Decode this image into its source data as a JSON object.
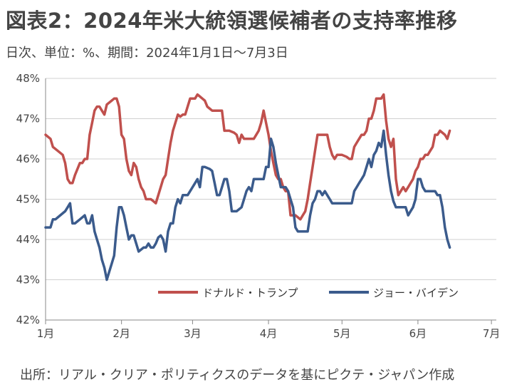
{
  "title": "図表2：2024年米大統領選候補者の支持率推移",
  "subtitle": "日次、単位：%、期間：2024年1月1日～7月3日",
  "source": "出所：リアル・クリア・ポリティクスのデータを基にピクテ・ジャパン作成",
  "chart_data": {
    "type": "line",
    "x_unit": "day of 2024",
    "y_unit": "%",
    "ylim": [
      42,
      48
    ],
    "xlim": [
      1,
      185
    ],
    "yticks": [
      42,
      43,
      44,
      45,
      46,
      47,
      48
    ],
    "ytick_labels": [
      "42%",
      "43%",
      "44%",
      "45%",
      "46%",
      "47%",
      "48%"
    ],
    "xticks": [
      {
        "label": "1月",
        "day": 1
      },
      {
        "label": "2月",
        "day": 32
      },
      {
        "label": "3月",
        "day": 61
      },
      {
        "label": "4月",
        "day": 92
      },
      {
        "label": "5月",
        "day": 122
      },
      {
        "label": "6月",
        "day": 153
      },
      {
        "label": "7月",
        "day": 183
      }
    ],
    "grid": "horizontal",
    "legend": "bottom-right",
    "series": [
      {
        "name": "ドナルド・トランプ",
        "color": "#c0504d",
        "points": [
          [
            1,
            46.6
          ],
          [
            3,
            46.5
          ],
          [
            4,
            46.3
          ],
          [
            6,
            46.2
          ],
          [
            8,
            46.1
          ],
          [
            9,
            45.9
          ],
          [
            10,
            45.5
          ],
          [
            11,
            45.4
          ],
          [
            12,
            45.4
          ],
          [
            13,
            45.6
          ],
          [
            15,
            45.9
          ],
          [
            16,
            45.9
          ],
          [
            17,
            46.0
          ],
          [
            18,
            46.0
          ],
          [
            19,
            46.6
          ],
          [
            20,
            46.9
          ],
          [
            21,
            47.2
          ],
          [
            22,
            47.3
          ],
          [
            23,
            47.3
          ],
          [
            24,
            47.2
          ],
          [
            25,
            47.1
          ],
          [
            26,
            47.35
          ],
          [
            28,
            47.45
          ],
          [
            29,
            47.5
          ],
          [
            30,
            47.5
          ],
          [
            31,
            47.3
          ],
          [
            32,
            46.6
          ],
          [
            33,
            46.5
          ],
          [
            34,
            46.0
          ],
          [
            35,
            45.7
          ],
          [
            36,
            45.6
          ],
          [
            37,
            45.9
          ],
          [
            38,
            45.8
          ],
          [
            39,
            45.5
          ],
          [
            40,
            45.3
          ],
          [
            41,
            45.2
          ],
          [
            42,
            45.0
          ],
          [
            44,
            45.0
          ],
          [
            45,
            44.95
          ],
          [
            46,
            44.9
          ],
          [
            47,
            45.1
          ],
          [
            48,
            45.3
          ],
          [
            49,
            45.5
          ],
          [
            50,
            45.6
          ],
          [
            51,
            46.0
          ],
          [
            52,
            46.4
          ],
          [
            53,
            46.7
          ],
          [
            54,
            46.9
          ],
          [
            55,
            47.1
          ],
          [
            56,
            47.05
          ],
          [
            57,
            47.1
          ],
          [
            58,
            47.1
          ],
          [
            59,
            47.3
          ],
          [
            60,
            47.5
          ],
          [
            62,
            47.5
          ],
          [
            63,
            47.6
          ],
          [
            64,
            47.55
          ],
          [
            65,
            47.5
          ],
          [
            66,
            47.45
          ],
          [
            67,
            47.3
          ],
          [
            68,
            47.25
          ],
          [
            69,
            47.2
          ],
          [
            71,
            47.2
          ],
          [
            73,
            47.2
          ],
          [
            74,
            46.7
          ],
          [
            76,
            46.7
          ],
          [
            78,
            46.65
          ],
          [
            79,
            46.6
          ],
          [
            80,
            46.4
          ],
          [
            81,
            46.6
          ],
          [
            82,
            46.5
          ],
          [
            84,
            46.5
          ],
          [
            86,
            46.5
          ],
          [
            87,
            46.6
          ],
          [
            88,
            46.7
          ],
          [
            89,
            46.9
          ],
          [
            90,
            47.2
          ],
          [
            91,
            46.9
          ],
          [
            92,
            46.6
          ],
          [
            93,
            46.2
          ],
          [
            94,
            45.9
          ],
          [
            95,
            45.6
          ],
          [
            96,
            45.5
          ],
          [
            97,
            45.5
          ],
          [
            98,
            45.3
          ],
          [
            99,
            45.2
          ],
          [
            100,
            45.2
          ],
          [
            101,
            44.6
          ],
          [
            103,
            44.6
          ],
          [
            104,
            44.55
          ],
          [
            105,
            44.5
          ],
          [
            106,
            44.6
          ],
          [
            107,
            44.7
          ],
          [
            108,
            45.0
          ],
          [
            109,
            45.4
          ],
          [
            110,
            45.8
          ],
          [
            111,
            46.2
          ],
          [
            112,
            46.6
          ],
          [
            114,
            46.6
          ],
          [
            116,
            46.6
          ],
          [
            117,
            46.3
          ],
          [
            118,
            46.1
          ],
          [
            119,
            46.0
          ],
          [
            120,
            46.1
          ],
          [
            122,
            46.1
          ],
          [
            124,
            46.05
          ],
          [
            125,
            46.0
          ],
          [
            126,
            46.0
          ],
          [
            127,
            46.3
          ],
          [
            128,
            46.4
          ],
          [
            129,
            46.5
          ],
          [
            130,
            46.6
          ],
          [
            131,
            46.6
          ],
          [
            132,
            46.7
          ],
          [
            133,
            47.0
          ],
          [
            134,
            47.0
          ],
          [
            135,
            47.2
          ],
          [
            136,
            47.5
          ],
          [
            137,
            47.5
          ],
          [
            138,
            47.5
          ],
          [
            139,
            47.6
          ],
          [
            140,
            46.95
          ],
          [
            141,
            46.5
          ],
          [
            142,
            46.3
          ],
          [
            143,
            46.5
          ],
          [
            144,
            45.5
          ],
          [
            145,
            45.1
          ],
          [
            146,
            45.2
          ],
          [
            147,
            45.3
          ],
          [
            148,
            45.2
          ],
          [
            149,
            45.3
          ],
          [
            150,
            45.4
          ],
          [
            151,
            45.5
          ],
          [
            152,
            45.7
          ],
          [
            153,
            45.8
          ],
          [
            154,
            46.0
          ],
          [
            155,
            46.0
          ],
          [
            156,
            46.1
          ],
          [
            157,
            46.1
          ],
          [
            158,
            46.2
          ],
          [
            159,
            46.3
          ],
          [
            160,
            46.6
          ],
          [
            161,
            46.6
          ],
          [
            162,
            46.7
          ],
          [
            164,
            46.6
          ],
          [
            165,
            46.5
          ],
          [
            166,
            46.7
          ]
        ]
      },
      {
        "name": "ジョー・バイデン",
        "color": "#3b5b8c",
        "points": [
          [
            1,
            44.3
          ],
          [
            3,
            44.3
          ],
          [
            4,
            44.5
          ],
          [
            5,
            44.5
          ],
          [
            7,
            44.6
          ],
          [
            9,
            44.7
          ],
          [
            10,
            44.8
          ],
          [
            11,
            44.9
          ],
          [
            12,
            44.4
          ],
          [
            13,
            44.4
          ],
          [
            15,
            44.5
          ],
          [
            17,
            44.6
          ],
          [
            18,
            44.4
          ],
          [
            19,
            44.4
          ],
          [
            20,
            44.6
          ],
          [
            21,
            44.2
          ],
          [
            22,
            44.0
          ],
          [
            23,
            43.8
          ],
          [
            24,
            43.5
          ],
          [
            25,
            43.3
          ],
          [
            26,
            43.0
          ],
          [
            27,
            43.2
          ],
          [
            28,
            43.4
          ],
          [
            29,
            43.6
          ],
          [
            30,
            44.3
          ],
          [
            31,
            44.8
          ],
          [
            32,
            44.8
          ],
          [
            33,
            44.6
          ],
          [
            34,
            44.3
          ],
          [
            35,
            44.0
          ],
          [
            36,
            44.1
          ],
          [
            37,
            44.1
          ],
          [
            38,
            43.9
          ],
          [
            39,
            43.7
          ],
          [
            40,
            43.75
          ],
          [
            41,
            43.8
          ],
          [
            42,
            43.8
          ],
          [
            43,
            43.9
          ],
          [
            44,
            43.8
          ],
          [
            45,
            43.8
          ],
          [
            46,
            43.9
          ],
          [
            47,
            44.05
          ],
          [
            48,
            44.1
          ],
          [
            49,
            44.0
          ],
          [
            50,
            43.7
          ],
          [
            51,
            44.2
          ],
          [
            52,
            44.4
          ],
          [
            53,
            44.4
          ],
          [
            54,
            44.8
          ],
          [
            55,
            45.0
          ],
          [
            56,
            44.9
          ],
          [
            57,
            45.1
          ],
          [
            59,
            45.1
          ],
          [
            60,
            45.2
          ],
          [
            61,
            45.3
          ],
          [
            62,
            45.4
          ],
          [
            63,
            45.5
          ],
          [
            64,
            45.3
          ],
          [
            65,
            45.8
          ],
          [
            66,
            45.8
          ],
          [
            68,
            45.75
          ],
          [
            69,
            45.7
          ],
          [
            70,
            45.4
          ],
          [
            71,
            45.1
          ],
          [
            72,
            45.1
          ],
          [
            73,
            45.3
          ],
          [
            74,
            45.5
          ],
          [
            75,
            45.5
          ],
          [
            76,
            45.2
          ],
          [
            77,
            44.7
          ],
          [
            79,
            44.7
          ],
          [
            81,
            44.8
          ],
          [
            82,
            45.0
          ],
          [
            83,
            45.2
          ],
          [
            84,
            45.3
          ],
          [
            85,
            45.2
          ],
          [
            86,
            45.5
          ],
          [
            88,
            45.5
          ],
          [
            90,
            45.5
          ],
          [
            91,
            45.8
          ],
          [
            92,
            45.8
          ],
          [
            93,
            46.5
          ],
          [
            94,
            46.3
          ],
          [
            95,
            45.9
          ],
          [
            96,
            45.6
          ],
          [
            97,
            45.3
          ],
          [
            98,
            45.3
          ],
          [
            99,
            45.3
          ],
          [
            100,
            45.2
          ],
          [
            101,
            45.0
          ],
          [
            102,
            44.8
          ],
          [
            103,
            44.3
          ],
          [
            104,
            44.2
          ],
          [
            106,
            44.2
          ],
          [
            107,
            44.2
          ],
          [
            108,
            44.2
          ],
          [
            109,
            44.6
          ],
          [
            110,
            44.9
          ],
          [
            111,
            45.0
          ],
          [
            112,
            45.2
          ],
          [
            113,
            45.2
          ],
          [
            114,
            45.1
          ],
          [
            115,
            45.2
          ],
          [
            116,
            45.1
          ],
          [
            117,
            45.0
          ],
          [
            118,
            44.9
          ],
          [
            120,
            44.9
          ],
          [
            122,
            44.9
          ],
          [
            124,
            44.9
          ],
          [
            126,
            44.9
          ],
          [
            127,
            45.2
          ],
          [
            128,
            45.3
          ],
          [
            129,
            45.4
          ],
          [
            130,
            45.5
          ],
          [
            131,
            45.6
          ],
          [
            132,
            45.8
          ],
          [
            133,
            46.0
          ],
          [
            134,
            45.8
          ],
          [
            135,
            46.1
          ],
          [
            136,
            46.2
          ],
          [
            137,
            46.4
          ],
          [
            138,
            46.3
          ],
          [
            139,
            46.7
          ],
          [
            140,
            46.1
          ],
          [
            141,
            45.6
          ],
          [
            142,
            45.2
          ],
          [
            143,
            44.95
          ],
          [
            144,
            44.8
          ],
          [
            146,
            44.8
          ],
          [
            148,
            44.8
          ],
          [
            149,
            44.6
          ],
          [
            150,
            44.7
          ],
          [
            151,
            44.8
          ],
          [
            152,
            45.0
          ],
          [
            153,
            45.5
          ],
          [
            154,
            45.5
          ],
          [
            155,
            45.3
          ],
          [
            156,
            45.2
          ],
          [
            158,
            45.2
          ],
          [
            160,
            45.2
          ],
          [
            161,
            45.1
          ],
          [
            162,
            45.1
          ],
          [
            163,
            44.8
          ],
          [
            164,
            44.3
          ],
          [
            165,
            44.0
          ],
          [
            166,
            43.8
          ]
        ]
      }
    ]
  }
}
